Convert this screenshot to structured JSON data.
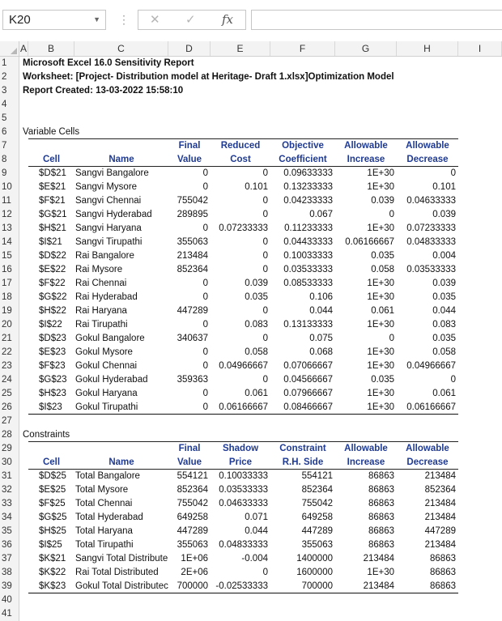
{
  "formula_bar": {
    "name_box": "K20",
    "cancel_icon": "✕",
    "enter_icon": "✓",
    "fx_label": "fx",
    "formula_value": ""
  },
  "columns": [
    "A",
    "B",
    "C",
    "D",
    "E",
    "F",
    "G",
    "H",
    "I"
  ],
  "report": {
    "title": "Microsoft Excel 16.0 Sensitivity Report",
    "worksheet": "Worksheet: [Project- Distribution model at Heritage- Draft 1.xlsx]Optimization Model",
    "created": "Report Created: 13-03-2022 15:58:10"
  },
  "variable_cells": {
    "section_label": "Variable Cells",
    "header_top": [
      "",
      "",
      "Final",
      "Reduced",
      "Objective",
      "Allowable",
      "Allowable"
    ],
    "header_bottom": [
      "Cell",
      "Name",
      "Value",
      "Cost",
      "Coefficient",
      "Increase",
      "Decrease"
    ],
    "rows": [
      [
        "$D$21",
        "Sangvi Bangalore",
        "0",
        "0",
        "0.09633333",
        "1E+30",
        "0"
      ],
      [
        "$E$21",
        "Sangvi Mysore",
        "0",
        "0.101",
        "0.13233333",
        "1E+30",
        "0.101"
      ],
      [
        "$F$21",
        "Sangvi Chennai",
        "755042",
        "0",
        "0.04233333",
        "0.039",
        "0.04633333"
      ],
      [
        "$G$21",
        "Sangvi Hyderabad",
        "289895",
        "0",
        "0.067",
        "0",
        "0.039"
      ],
      [
        "$H$21",
        "Sangvi Haryana",
        "0",
        "0.07233333",
        "0.11233333",
        "1E+30",
        "0.07233333"
      ],
      [
        "$I$21",
        "Sangvi Tirupathi",
        "355063",
        "0",
        "0.04433333",
        "0.06166667",
        "0.04833333"
      ],
      [
        "$D$22",
        "Rai Bangalore",
        "213484",
        "0",
        "0.10033333",
        "0.035",
        "0.004"
      ],
      [
        "$E$22",
        "Rai Mysore",
        "852364",
        "0",
        "0.03533333",
        "0.058",
        "0.03533333"
      ],
      [
        "$F$22",
        "Rai Chennai",
        "0",
        "0.039",
        "0.08533333",
        "1E+30",
        "0.039"
      ],
      [
        "$G$22",
        "Rai Hyderabad",
        "0",
        "0.035",
        "0.106",
        "1E+30",
        "0.035"
      ],
      [
        "$H$22",
        "Rai Haryana",
        "447289",
        "0",
        "0.044",
        "0.061",
        "0.044"
      ],
      [
        "$I$22",
        "Rai Tirupathi",
        "0",
        "0.083",
        "0.13133333",
        "1E+30",
        "0.083"
      ],
      [
        "$D$23",
        "Gokul Bangalore",
        "340637",
        "0",
        "0.075",
        "0",
        "0.035"
      ],
      [
        "$E$23",
        "Gokul Mysore",
        "0",
        "0.058",
        "0.068",
        "1E+30",
        "0.058"
      ],
      [
        "$F$23",
        "Gokul Chennai",
        "0",
        "0.04966667",
        "0.07066667",
        "1E+30",
        "0.04966667"
      ],
      [
        "$G$23",
        "Gokul Hyderabad",
        "359363",
        "0",
        "0.04566667",
        "0.035",
        "0"
      ],
      [
        "$H$23",
        "Gokul Haryana",
        "0",
        "0.061",
        "0.07966667",
        "1E+30",
        "0.061"
      ],
      [
        "$I$23",
        "Gokul Tirupathi",
        "0",
        "0.06166667",
        "0.08466667",
        "1E+30",
        "0.06166667"
      ]
    ]
  },
  "constraints": {
    "section_label": "Constraints",
    "header_top": [
      "",
      "",
      "Final",
      "Shadow",
      "Constraint",
      "Allowable",
      "Allowable"
    ],
    "header_bottom": [
      "Cell",
      "Name",
      "Value",
      "Price",
      "R.H. Side",
      "Increase",
      "Decrease"
    ],
    "rows": [
      [
        "$D$25",
        "Total Bangalore",
        "554121",
        "0.10033333",
        "554121",
        "86863",
        "213484"
      ],
      [
        "$E$25",
        "Total Mysore",
        "852364",
        "0.03533333",
        "852364",
        "86863",
        "852364"
      ],
      [
        "$F$25",
        "Total Chennai",
        "755042",
        "0.04633333",
        "755042",
        "86863",
        "213484"
      ],
      [
        "$G$25",
        "Total Hyderabad",
        "649258",
        "0.071",
        "649258",
        "86863",
        "213484"
      ],
      [
        "$H$25",
        "Total Haryana",
        "447289",
        "0.044",
        "447289",
        "86863",
        "447289"
      ],
      [
        "$I$25",
        "Total Tirupathi",
        "355063",
        "0.04833333",
        "355063",
        "86863",
        "213484"
      ],
      [
        "$K$21",
        "Sangvi Total Distribute",
        "1E+06",
        "-0.004",
        "1400000",
        "213484",
        "86863"
      ],
      [
        "$K$22",
        "Rai Total Distributed",
        "2E+06",
        "0",
        "1600000",
        "1E+30",
        "86863"
      ],
      [
        "$K$23",
        "Gokul Total Distributec",
        "700000",
        "-0.02533333",
        "700000",
        "213484",
        "86863"
      ]
    ]
  },
  "row_numbers": [
    "1",
    "2",
    "3",
    "4",
    "5",
    "6",
    "7",
    "8",
    "9",
    "10",
    "11",
    "12",
    "13",
    "14",
    "15",
    "16",
    "17",
    "18",
    "19",
    "20",
    "21",
    "22",
    "23",
    "24",
    "25",
    "26",
    "27",
    "28",
    "29",
    "30",
    "31",
    "32",
    "33",
    "34",
    "35",
    "36",
    "37",
    "38",
    "39",
    "40",
    "41"
  ]
}
